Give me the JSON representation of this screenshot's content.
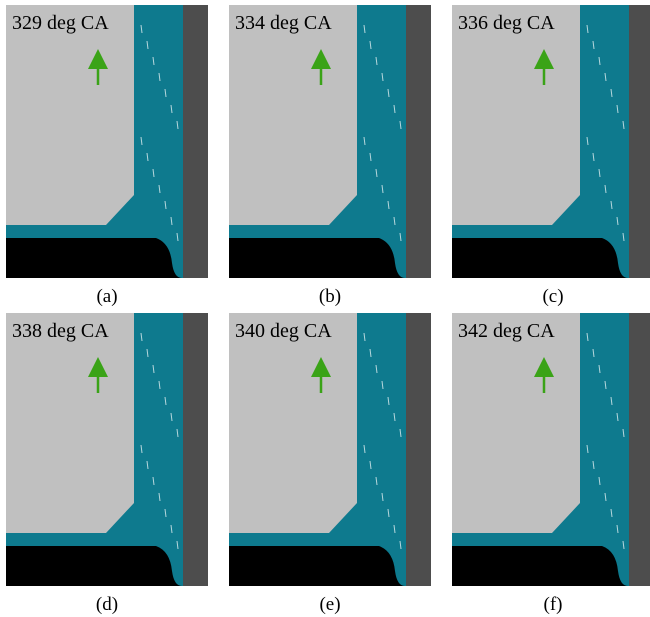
{
  "panels": [
    {
      "label": "329 deg CA",
      "caption": "(a)"
    },
    {
      "label": "334 deg CA",
      "caption": "(b)"
    },
    {
      "label": "336 deg CA",
      "caption": "(c)"
    },
    {
      "label": "338 deg CA",
      "caption": "(d)"
    },
    {
      "label": "340 deg CA",
      "caption": "(e)"
    },
    {
      "label": "342 deg CA",
      "caption": "(f)"
    }
  ]
}
